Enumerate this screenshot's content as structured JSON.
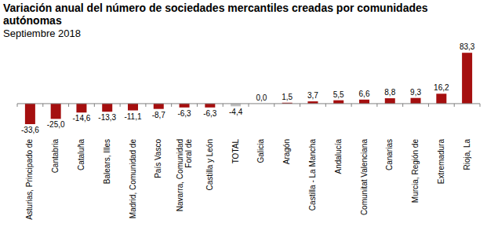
{
  "chart_data": {
    "type": "bar",
    "title": "Variación anual del número de sociedades mercantiles creadas por comunidades autónomas",
    "subtitle": "Septiembre 2018",
    "categories": [
      "Asturias, Principado de",
      "Cantabria",
      "Cataluña",
      "Balears, Illes",
      "Madrid, Comunidad de",
      "País Vasco",
      "Navarra, Comunidad Foral de",
      "Castilla y León",
      "TOTAL",
      "Galicia",
      "Aragón",
      "Castilla - La Mancha",
      "Andalucía",
      "Comunitat Valenciana",
      "Canarias",
      "Murcia, Región de",
      "Extremadura",
      "Rioja, La"
    ],
    "values": [
      -33.6,
      -25.0,
      -14.6,
      -13.3,
      -11.1,
      -8.7,
      -6.3,
      -6.3,
      -4.4,
      0.0,
      1.5,
      3.7,
      5.5,
      6.6,
      8.8,
      9.3,
      16.2,
      83.3
    ],
    "value_labels": [
      "-33,6",
      "-25,0",
      "-14,6",
      "-13,3",
      "-11,1",
      "-8,7",
      "-6,3",
      "-6,3",
      "-4,4",
      "0,0",
      "1,5",
      "3,7",
      "5,5",
      "6,6",
      "8,8",
      "9,3",
      "16,2",
      "83,3"
    ],
    "colors": [
      "#a50f0f",
      "#a50f0f",
      "#a50f0f",
      "#a50f0f",
      "#a50f0f",
      "#a50f0f",
      "#a50f0f",
      "#a50f0f",
      "#bfbfbf",
      "#a50f0f",
      "#a50f0f",
      "#a50f0f",
      "#a50f0f",
      "#a50f0f",
      "#a50f0f",
      "#a50f0f",
      "#a50f0f",
      "#a50f0f"
    ],
    "ylim": [
      -40,
      90
    ],
    "data_labels": true,
    "tick_labels": "x",
    "grid": false
  }
}
